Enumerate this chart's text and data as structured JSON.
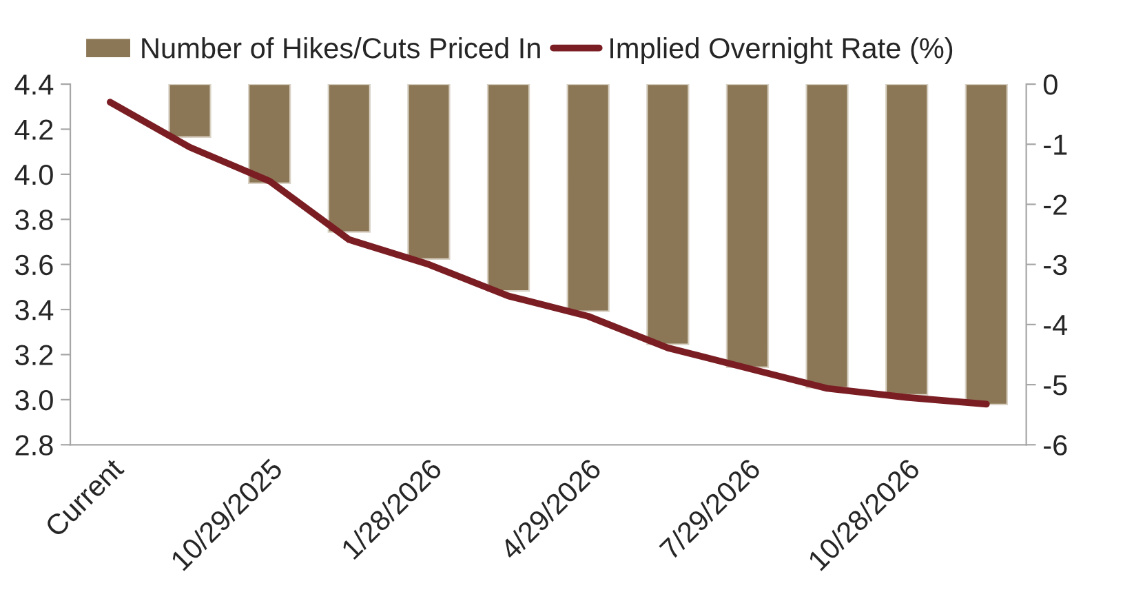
{
  "chart_data": {
    "type": "bar",
    "categories": [
      "Current",
      null,
      "10/29/2025",
      null,
      "1/28/2026",
      null,
      "4/29/2026",
      null,
      "7/29/2026",
      null,
      "10/28/2026",
      null
    ],
    "series": [
      {
        "name": "Number of Hikes/Cuts Priced In",
        "axis": "y2",
        "color": "#8b7755",
        "values": [
          null,
          -0.88,
          -1.65,
          -2.46,
          -2.91,
          -3.44,
          -3.78,
          -4.33,
          -4.71,
          -5.05,
          -5.17,
          -5.33
        ]
      },
      {
        "name": "Implied Overnight Rate (%)",
        "type": "line",
        "axis": "y",
        "color": "#7b1e24",
        "values": [
          4.32,
          4.12,
          3.97,
          3.71,
          3.6,
          3.46,
          3.37,
          3.23,
          3.14,
          3.05,
          3.01,
          2.98
        ]
      }
    ],
    "ylim": [
      2.8,
      4.4
    ],
    "yticks": [
      2.8,
      {
        "value": 3.0,
        "label": "3.0"
      },
      3.2,
      3.4,
      3.6,
      3.8,
      {
        "value": 4.0,
        "label": "4.0"
      },
      4.2,
      4.4
    ],
    "y2lim": [
      -6,
      0
    ],
    "y2ticks": [
      -6,
      -5,
      -4,
      -3,
      -2,
      -1,
      0
    ],
    "legend": "top",
    "grid": false
  }
}
